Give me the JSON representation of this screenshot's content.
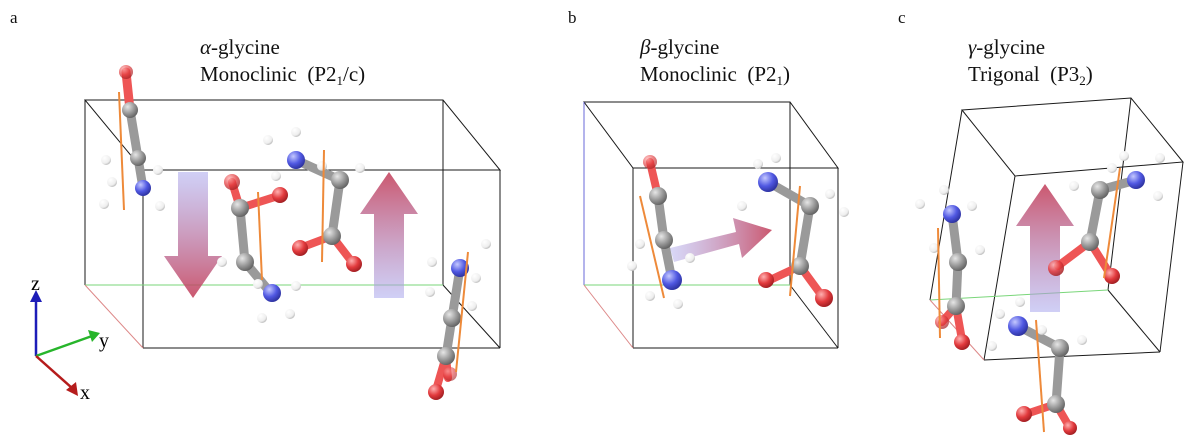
{
  "panels": [
    {
      "letter": "a",
      "greek": "α",
      "name_suffix": "-glycine",
      "system": "Monoclinic",
      "space_group": {
        "open": "(P2",
        "sub": "1",
        "close": "/c)"
      }
    },
    {
      "letter": "b",
      "greek": "β",
      "name_suffix": "-glycine",
      "system": "Monoclinic",
      "space_group": {
        "open": "(P2",
        "sub": "1",
        "close": ")"
      }
    },
    {
      "letter": "c",
      "greek": "γ",
      "name_suffix": "-glycine",
      "system": "Trigonal",
      "space_group": {
        "open": "(P3",
        "sub": "2",
        "close": ")"
      }
    }
  ],
  "axes": {
    "z": "z",
    "y": "y",
    "x": "x"
  },
  "colors": {
    "carbon": "#8f8f8f",
    "oxygen": "#e0363a",
    "nitrogen": "#4d57e0",
    "hydrogen": "#f4f4f4",
    "dipole": "#ee8a3a",
    "cell_edge": "#1a1a1a",
    "axis_z": "#1d1db8",
    "axis_y": "#27b52b",
    "axis_x": "#b51c1c"
  }
}
